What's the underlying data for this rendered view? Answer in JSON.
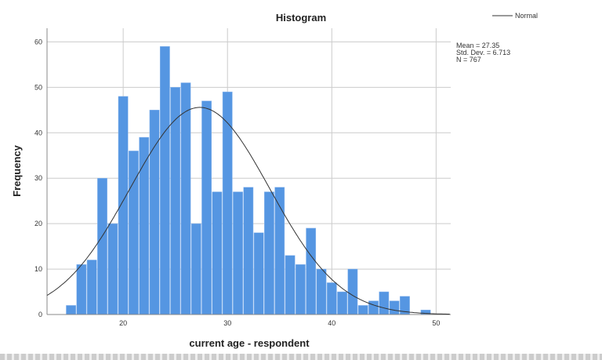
{
  "chart_data": {
    "type": "bar",
    "title": "Histogram",
    "xlabel": "current age - respondent",
    "ylabel": "Frequency",
    "x": [
      15,
      16,
      17,
      18,
      19,
      20,
      21,
      22,
      23,
      24,
      25,
      26,
      27,
      28,
      29,
      30,
      31,
      32,
      33,
      34,
      35,
      36,
      37,
      38,
      39,
      40,
      41,
      42,
      43,
      44,
      45,
      46,
      47,
      48,
      49
    ],
    "values": [
      2,
      11,
      12,
      30,
      20,
      48,
      36,
      39,
      45,
      59,
      50,
      51,
      20,
      47,
      27,
      49,
      27,
      28,
      18,
      27,
      28,
      13,
      11,
      19,
      10,
      7,
      5,
      10,
      2,
      3,
      5,
      3,
      4,
      0,
      1
    ],
    "xlim": [
      12.7,
      51.4
    ],
    "ylim": [
      0,
      63
    ],
    "xticks": [
      20,
      30,
      40,
      50
    ],
    "yticks": [
      0,
      10,
      20,
      30,
      40,
      50,
      60
    ],
    "grid": true,
    "legend": {
      "label": "Normal",
      "placement": "top-right"
    },
    "stats": {
      "mean": 27.35,
      "sd": 6.713,
      "n": 767,
      "lines": [
        "Mean = 27.35",
        "Std. Dev. = 6.713",
        "N = 767"
      ]
    },
    "colors": {
      "bar": "#5596e2",
      "curve": "#333333",
      "grid": "#cccccc"
    }
  }
}
